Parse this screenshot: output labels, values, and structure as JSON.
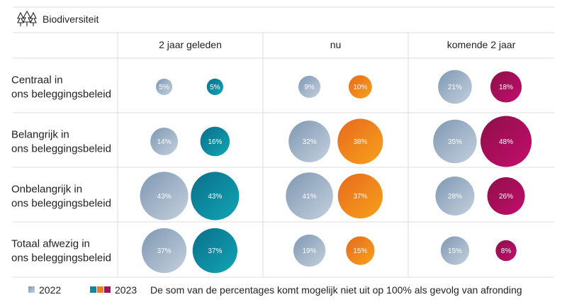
{
  "title": "Biodiversiteit",
  "icon": "trees-icon",
  "chart_data": {
    "type": "bubble-table",
    "columns": [
      "2 jaar geleden",
      "nu",
      "komende 2 jaar"
    ],
    "rows": [
      {
        "label": [
          "Centraal in",
          "ons beleggingsbeleid"
        ],
        "values_2022": [
          5,
          9,
          21
        ],
        "values_2023": [
          5,
          10,
          18
        ]
      },
      {
        "label": [
          "Belangrijk in",
          "ons beleggingsbeleid"
        ],
        "values_2022": [
          14,
          32,
          35
        ],
        "values_2023": [
          16,
          38,
          48
        ]
      },
      {
        "label": [
          "Onbelangrijk in",
          "ons beleggingsbeleid"
        ],
        "values_2022": [
          43,
          41,
          28
        ],
        "values_2023": [
          43,
          37,
          26
        ]
      },
      {
        "label": [
          "Totaal afwezig in",
          "ons beleggingsbeleid"
        ],
        "values_2022": [
          37,
          19,
          15
        ],
        "values_2023": [
          37,
          15,
          8
        ]
      }
    ],
    "series": [
      {
        "name": "2022",
        "colors": [
          "#8fa6bf",
          "#8fa6bf",
          "#8fa6bf"
        ]
      },
      {
        "name": "2023",
        "colors": [
          "#0b8a9e",
          "#ef7d1a",
          "#a8105e"
        ]
      }
    ],
    "value_suffix": "%"
  },
  "legend": {
    "label_2022": "2022",
    "label_2023": "2023",
    "note": "De som van de percentages komt mogelijk niet uit op 100% als gevolg van afronding"
  }
}
